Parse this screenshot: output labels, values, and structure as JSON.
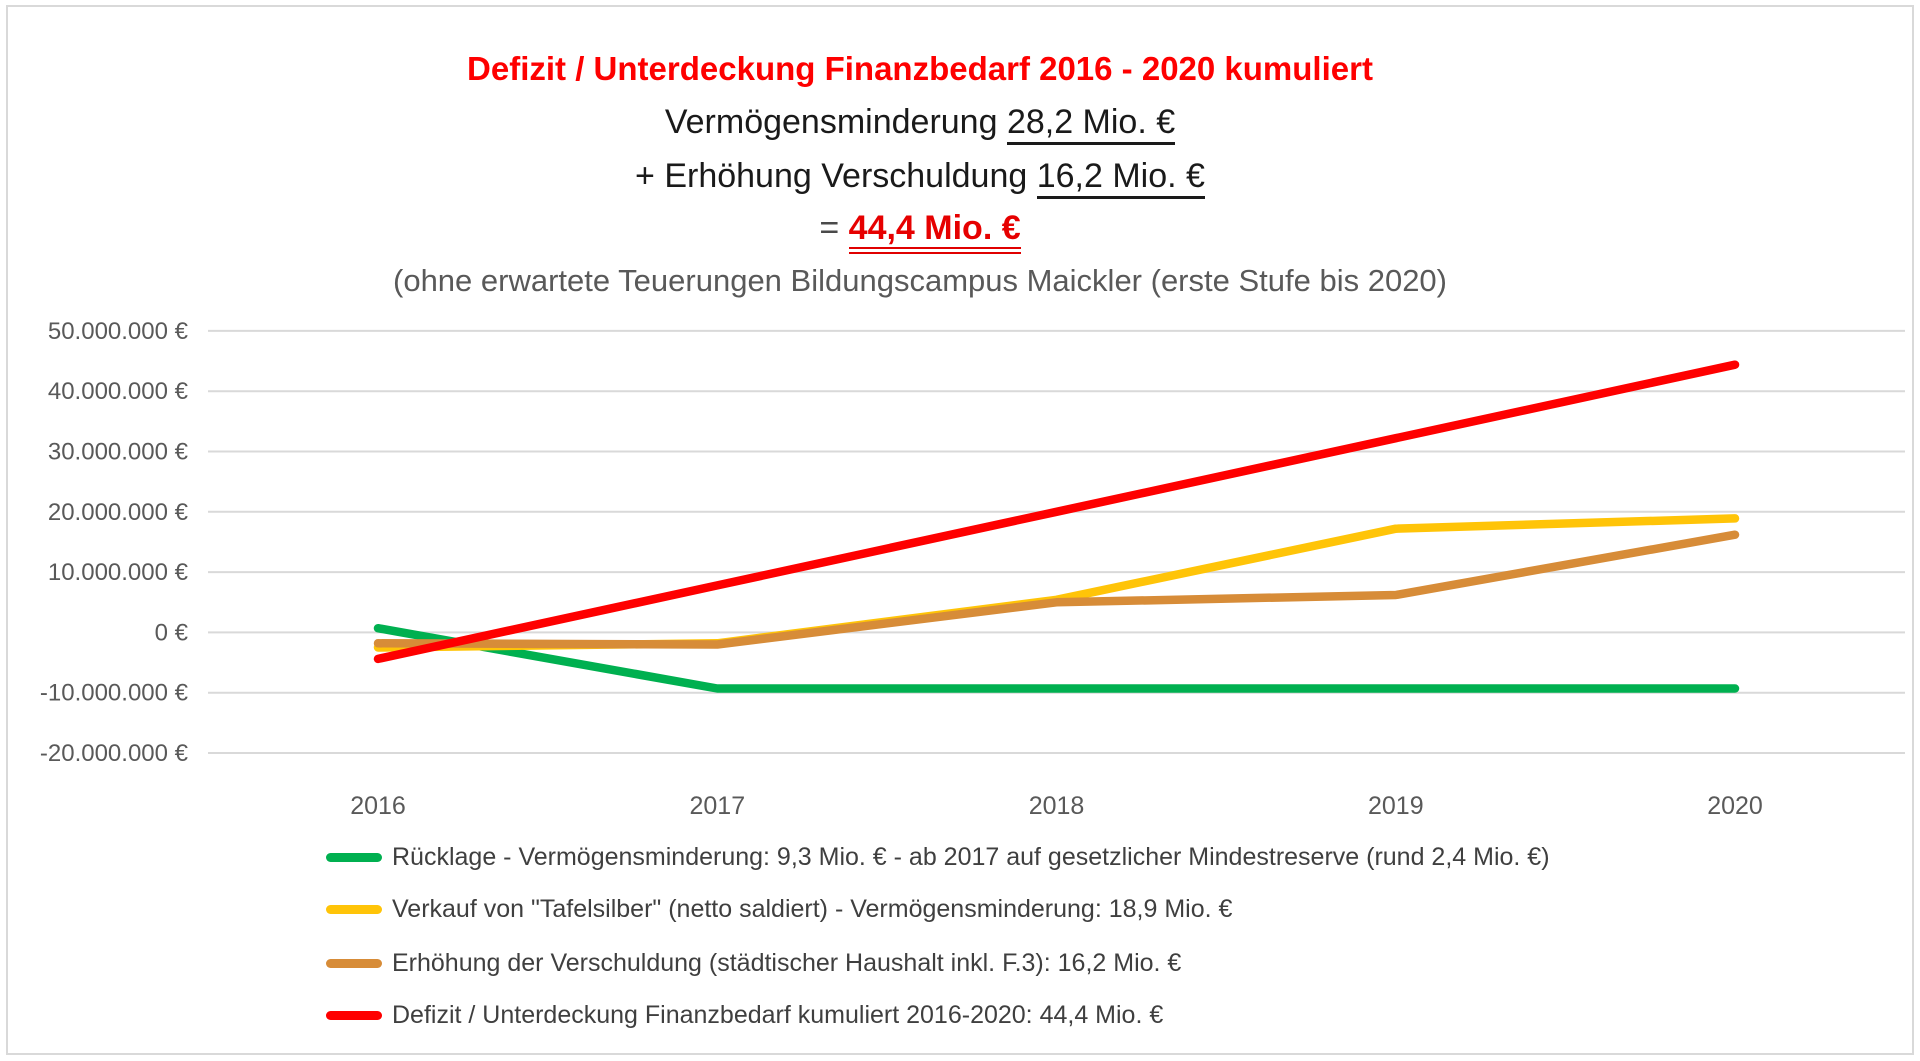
{
  "title": {
    "line1": "Defizit / Unterdeckung Finanzbedarf 2016 - 2020 kumuliert",
    "line2_prefix": "Vermögensminderung ",
    "line2_value": "28,2 Mio. €",
    "line3_prefix": "+ Erhöhung Verschuldung ",
    "line3_value": "16,2 Mio. €",
    "line4_prefix": "= ",
    "line4_value": "44,4 Mio. €",
    "note": "(ohne erwartete Teuerungen Bildungscampus Maickler (erste Stufe bis 2020)"
  },
  "colors": {
    "title_red": "#fe0000",
    "text_black": "#1a1a1a",
    "text_gray": "#595959",
    "gridline": "#d9d9d9",
    "frame_border": "#d9d9d9",
    "series_green": "#00b050",
    "series_yellow": "#ffc408",
    "series_orange": "#d78c38",
    "series_red": "#fe0000"
  },
  "chart_data": {
    "type": "line",
    "categories": [
      "2016",
      "2017",
      "2018",
      "2019",
      "2020"
    ],
    "y_ticks": [
      {
        "value": 50000000,
        "label": "50.000.000 €"
      },
      {
        "value": 40000000,
        "label": "40.000.000 €"
      },
      {
        "value": 30000000,
        "label": "30.000.000 €"
      },
      {
        "value": 20000000,
        "label": "20.000.000 €"
      },
      {
        "value": 10000000,
        "label": "10.000.000 €"
      },
      {
        "value": 0,
        "label": "0 €"
      },
      {
        "value": -10000000,
        "label": "-10.000.000 €"
      },
      {
        "value": -20000000,
        "label": "-20.000.000 €"
      }
    ],
    "ylim": [
      -20000000,
      50000000
    ],
    "grid": true,
    "legend_position": "bottom-left",
    "series": [
      {
        "name": "Rücklage - Vermögensminderung: 9,3 Mio. € - ab 2017 auf gesetzlicher Mindestreserve (rund 2,4 Mio. €)",
        "color": "#00b050",
        "values": [
          700000,
          -9300000,
          -9300000,
          -9300000,
          -9300000
        ]
      },
      {
        "name": "Verkauf von \"Tafelsilber\" (netto saldiert) - Vermögensminderung: 18,9 Mio. €",
        "color": "#ffc408",
        "values": [
          -2500000,
          -1800000,
          5400000,
          17200000,
          18900000
        ]
      },
      {
        "name": "Erhöhung der Verschuldung (städtischer Haushalt inkl. F.3): 16,2 Mio. €",
        "color": "#d78c38",
        "values": [
          -1800000,
          -2000000,
          5000000,
          6200000,
          16200000
        ]
      },
      {
        "name": "Defizit / Unterdeckung Finanzbedarf kumuliert 2016-2020: 44,4 Mio. €",
        "color": "#fe0000",
        "values": [
          -4400000,
          7800000,
          20000000,
          32200000,
          44400000
        ]
      }
    ]
  }
}
